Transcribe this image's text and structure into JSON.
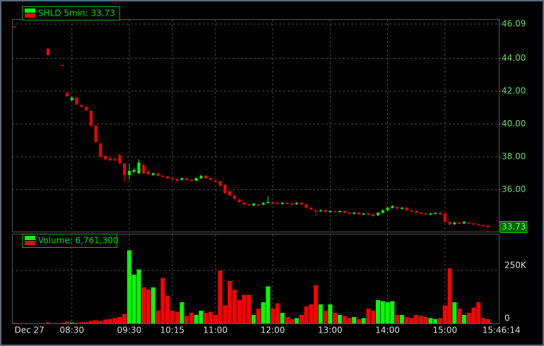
{
  "chart_data": {
    "type": "candlestick",
    "title": "SHLD 5min: 33.73",
    "up_color": "#00ff00",
    "down_color": "#ff0000",
    "grid": true,
    "categories": [
      "Dec 27",
      null,
      null,
      null,
      null,
      null,
      null,
      null,
      null,
      null,
      null,
      null,
      "08:30",
      null,
      null,
      null,
      null,
      null,
      null,
      null,
      null,
      null,
      null,
      null,
      "09:30",
      null,
      null,
      null,
      null,
      null,
      null,
      null,
      null,
      "10:15",
      null,
      null,
      null,
      null,
      null,
      null,
      null,
      null,
      "11:00",
      null,
      null,
      null,
      null,
      null,
      null,
      null,
      null,
      null,
      null,
      null,
      "12:00",
      null,
      null,
      null,
      null,
      null,
      null,
      null,
      null,
      null,
      null,
      null,
      "13:00",
      null,
      null,
      null,
      null,
      null,
      null,
      null,
      null,
      null,
      null,
      null,
      "14:00",
      null,
      null,
      null,
      null,
      null,
      null,
      null,
      null,
      null,
      null,
      null,
      "15:00",
      null,
      null,
      null,
      null,
      null,
      null,
      null,
      null,
      "15:46:14"
    ],
    "open": [
      45.95,
      null,
      null,
      null,
      null,
      null,
      null,
      44.6,
      null,
      null,
      43.6,
      41.9,
      41.45,
      41.6,
      41.15,
      41.05,
      40.8,
      39.9,
      38.8,
      38.05,
      37.9,
      37.85,
      38.1,
      37.6,
      36.9,
      37.1,
      37.0,
      37.5,
      37.1,
      36.9,
      37.0,
      36.85,
      36.8,
      36.7,
      36.65,
      36.6,
      36.7,
      36.6,
      36.55,
      36.7,
      36.85,
      36.7,
      36.55,
      36.5,
      36.3,
      35.9,
      35.65,
      35.4,
      35.2,
      35.1,
      35.05,
      35.1,
      35.1,
      35.2,
      35.25,
      35.2,
      35.15,
      35.2,
      35.15,
      35.12,
      35.2,
      35.1,
      34.9,
      34.75,
      34.7,
      34.75,
      34.65,
      34.7,
      34.65,
      34.7,
      34.6,
      34.55,
      34.6,
      34.5,
      34.55,
      34.5,
      34.45,
      34.6,
      34.75,
      34.9,
      34.95,
      34.85,
      34.9,
      34.75,
      34.7,
      34.6,
      34.55,
      34.5,
      34.55,
      34.6,
      34.55,
      34.05,
      33.9,
      34.0,
      33.95,
      34.0,
      33.95,
      33.9,
      33.85,
      33.8
    ],
    "high": [
      45.96,
      null,
      null,
      null,
      null,
      null,
      null,
      44.62,
      null,
      null,
      43.62,
      41.95,
      41.7,
      41.65,
      41.2,
      41.1,
      40.85,
      39.95,
      38.9,
      38.1,
      38.0,
      37.95,
      38.2,
      37.65,
      37.6,
      37.35,
      37.85,
      37.6,
      37.2,
      37.05,
      37.05,
      36.9,
      36.85,
      36.75,
      36.7,
      36.75,
      36.75,
      36.65,
      36.75,
      36.9,
      36.9,
      36.75,
      36.6,
      36.55,
      36.35,
      35.95,
      35.7,
      35.45,
      35.25,
      35.15,
      35.2,
      35.15,
      35.25,
      35.6,
      35.3,
      35.25,
      35.25,
      35.25,
      35.2,
      35.25,
      35.25,
      35.15,
      34.95,
      34.8,
      34.8,
      34.8,
      34.75,
      34.75,
      34.75,
      34.75,
      34.65,
      34.65,
      34.65,
      34.6,
      34.6,
      34.55,
      34.65,
      34.8,
      34.95,
      35.05,
      35.0,
      34.95,
      34.95,
      34.8,
      34.75,
      34.65,
      34.6,
      34.6,
      34.6,
      34.65,
      34.6,
      34.1,
      34.05,
      34.05,
      34.1,
      34.05,
      34.0,
      33.95,
      33.9,
      33.85
    ],
    "low": [
      45.93,
      null,
      null,
      null,
      null,
      null,
      null,
      44.18,
      null,
      null,
      43.56,
      41.65,
      41.4,
      41.15,
      41.0,
      40.8,
      39.85,
      38.85,
      37.95,
      37.8,
      37.75,
      37.75,
      37.55,
      36.5,
      36.6,
      37.0,
      36.95,
      36.95,
      36.9,
      36.85,
      36.8,
      36.75,
      36.65,
      36.6,
      36.5,
      36.55,
      36.55,
      36.5,
      36.5,
      36.65,
      36.65,
      36.55,
      36.45,
      36.2,
      35.75,
      35.6,
      35.4,
      35.2,
      35.05,
      35.0,
      35.0,
      35.0,
      35.05,
      35.15,
      35.1,
      35.1,
      35.1,
      35.1,
      35.05,
      35.08,
      35.05,
      34.85,
      34.75,
      34.4,
      34.65,
      34.6,
      34.6,
      34.6,
      34.6,
      34.55,
      34.5,
      34.5,
      34.45,
      34.45,
      34.45,
      34.35,
      34.4,
      34.55,
      34.7,
      34.85,
      34.8,
      34.8,
      34.7,
      34.65,
      34.55,
      34.5,
      34.45,
      34.45,
      34.5,
      34.45,
      34.0,
      33.85,
      33.85,
      33.9,
      33.9,
      33.9,
      33.85,
      33.8,
      33.75,
      33.7
    ],
    "close": [
      45.93,
      null,
      null,
      null,
      null,
      null,
      null,
      44.2,
      null,
      null,
      43.58,
      41.7,
      41.6,
      41.2,
      41.05,
      40.85,
      39.9,
      38.9,
      38.0,
      37.85,
      37.8,
      37.8,
      37.6,
      36.9,
      37.15,
      37.2,
      37.65,
      37.0,
      36.95,
      37.0,
      36.85,
      36.8,
      36.7,
      36.65,
      36.55,
      36.7,
      36.6,
      36.55,
      36.7,
      36.85,
      36.7,
      36.6,
      36.5,
      36.25,
      35.8,
      35.65,
      35.45,
      35.25,
      35.1,
      35.05,
      35.15,
      35.05,
      35.2,
      35.25,
      35.15,
      35.15,
      35.2,
      35.15,
      35.1,
      35.2,
      35.1,
      34.9,
      34.8,
      34.7,
      34.75,
      34.65,
      34.7,
      34.65,
      34.7,
      34.6,
      34.55,
      34.6,
      34.5,
      34.55,
      34.5,
      34.4,
      34.6,
      34.75,
      34.9,
      35.0,
      34.85,
      34.9,
      34.75,
      34.7,
      34.6,
      34.55,
      34.5,
      34.55,
      34.6,
      34.5,
      34.05,
      33.9,
      34.0,
      33.95,
      34.05,
      33.95,
      33.9,
      33.85,
      33.8,
      33.73
    ],
    "ylim": [
      33.45,
      46.35
    ],
    "yticks": [
      46.09,
      {
        "value": 44,
        "label": "44.00"
      },
      {
        "value": 42,
        "label": "42.00"
      },
      {
        "value": 40,
        "label": "40.00"
      },
      {
        "value": 38,
        "label": "38.00"
      },
      {
        "value": 36,
        "label": "36.00"
      }
    ],
    "volume": {
      "title": "Volume: 6,761,300",
      "values": [
        2000,
        null,
        null,
        null,
        null,
        null,
        null,
        5000,
        null,
        null,
        3000,
        8000,
        4000,
        3000,
        5000,
        6000,
        12000,
        15000,
        12000,
        18000,
        20000,
        25000,
        30000,
        45000,
        345000,
        230000,
        255000,
        170000,
        160000,
        170000,
        60000,
        215000,
        130000,
        60000,
        55000,
        100000,
        35000,
        50000,
        40000,
        60000,
        50000,
        55000,
        40000,
        250000,
        85000,
        200000,
        160000,
        110000,
        135000,
        135000,
        40000,
        70000,
        100000,
        175000,
        70000,
        95000,
        50000,
        30000,
        20000,
        25000,
        40000,
        80000,
        90000,
        180000,
        90000,
        60000,
        90000,
        50000,
        40000,
        35000,
        25000,
        30000,
        20000,
        25000,
        70000,
        60000,
        110000,
        105000,
        100000,
        105000,
        40000,
        40000,
        30000,
        25000,
        40000,
        35000,
        30000,
        25000,
        20000,
        25000,
        85000,
        260000,
        100000,
        70000,
        40000,
        50000,
        75000,
        100000,
        25000,
        20000
      ],
      "ylim": [
        0,
        420000
      ],
      "yticks": [
        0,
        {
          "value": 250000,
          "label": "250K"
        }
      ]
    }
  }
}
